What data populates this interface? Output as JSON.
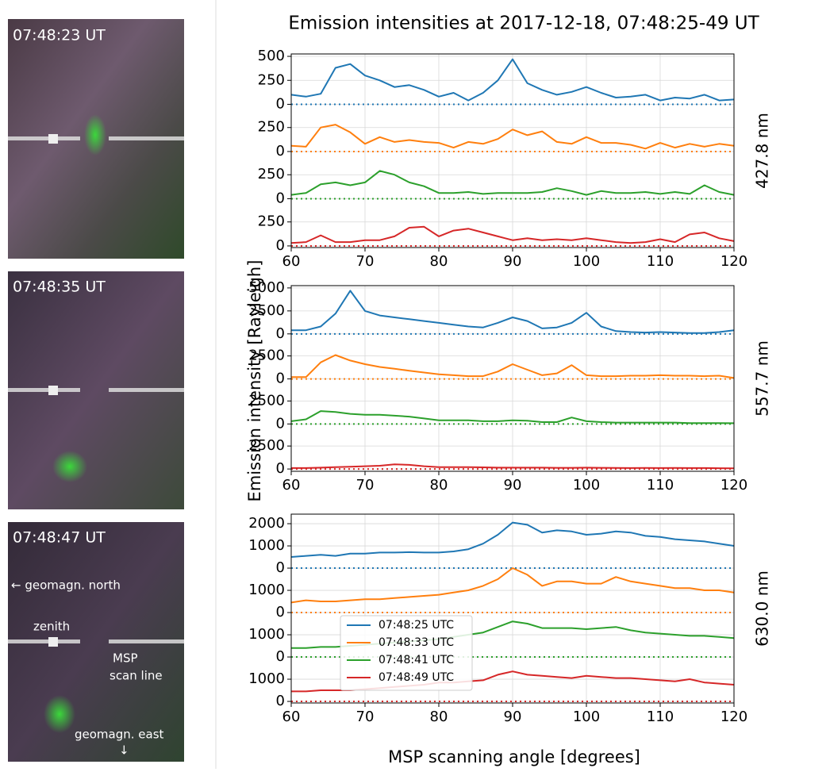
{
  "figure": {
    "title": "Emission intensities at 2017-12-18, 07:48:25-49 UT",
    "ylabel": "Emission intensity [Rayleigh]",
    "xlabel": "MSP scanning angle [degrees]"
  },
  "images": [
    {
      "label": "07:48:23 UT"
    },
    {
      "label": "07:48:35 UT"
    },
    {
      "label": "07:48:47 UT"
    }
  ],
  "annotations": {
    "north": "← geomagn. north",
    "zenith": "zenith",
    "scan_line": [
      "MSP",
      "scan line"
    ],
    "east": "geomagn. east",
    "east_arrow": "↓"
  },
  "chart_data": [
    {
      "type": "line",
      "label": "427.8 nm",
      "xlim": [
        60,
        120
      ],
      "xticks": [
        60,
        70,
        80,
        90,
        100,
        110,
        120
      ],
      "grid": true,
      "x": [
        60,
        62,
        64,
        66,
        68,
        70,
        72,
        74,
        76,
        78,
        80,
        82,
        84,
        86,
        88,
        90,
        92,
        94,
        96,
        98,
        100,
        102,
        104,
        106,
        108,
        110,
        112,
        114,
        116,
        118,
        120
      ],
      "series": [
        {
          "color": "#1f77b4",
          "ylim": [
            -17,
            525
          ],
          "yticks": [
            0,
            250,
            500
          ],
          "values": [
            100,
            80,
            110,
            380,
            420,
            300,
            250,
            180,
            200,
            150,
            80,
            120,
            40,
            120,
            250,
            470,
            220,
            150,
            100,
            130,
            180,
            120,
            70,
            80,
            100,
            40,
            70,
            60,
            100,
            40,
            50
          ]
        },
        {
          "color": "#ff7f0e",
          "ylim": [
            -17,
            475
          ],
          "yticks": [
            0,
            250
          ],
          "values": [
            60,
            50,
            250,
            280,
            200,
            80,
            150,
            100,
            120,
            100,
            90,
            40,
            100,
            80,
            130,
            230,
            170,
            210,
            100,
            80,
            150,
            90,
            90,
            70,
            30,
            90,
            40,
            80,
            50,
            80,
            60
          ]
        },
        {
          "color": "#2ca02c",
          "ylim": [
            -17,
            475
          ],
          "yticks": [
            0,
            250
          ],
          "values": [
            40,
            60,
            150,
            170,
            140,
            170,
            290,
            250,
            170,
            130,
            60,
            60,
            70,
            50,
            60,
            60,
            60,
            70,
            110,
            80,
            40,
            80,
            60,
            60,
            70,
            50,
            70,
            50,
            140,
            70,
            40
          ]
        },
        {
          "color": "#d62728",
          "ylim": [
            -17,
            475
          ],
          "yticks": [
            0,
            250
          ],
          "values": [
            30,
            40,
            110,
            40,
            40,
            60,
            60,
            100,
            190,
            200,
            100,
            160,
            180,
            140,
            100,
            60,
            80,
            60,
            70,
            60,
            80,
            60,
            40,
            30,
            40,
            70,
            40,
            120,
            140,
            80,
            50
          ]
        }
      ]
    },
    {
      "type": "line",
      "label": "557.7 nm",
      "xlim": [
        60,
        120
      ],
      "xticks": [
        60,
        70,
        80,
        90,
        100,
        110,
        120
      ],
      "grid": true,
      "x": [
        60,
        62,
        64,
        66,
        68,
        70,
        72,
        74,
        76,
        78,
        80,
        82,
        84,
        86,
        88,
        90,
        92,
        94,
        96,
        98,
        100,
        102,
        104,
        106,
        108,
        110,
        112,
        114,
        116,
        118,
        120
      ],
      "series": [
        {
          "color": "#1f77b4",
          "ylim": [
            -250,
            5250
          ],
          "yticks": [
            0,
            2500,
            5000
          ],
          "values": [
            400,
            400,
            800,
            2200,
            4700,
            2500,
            2000,
            1800,
            1600,
            1400,
            1200,
            1000,
            800,
            700,
            1200,
            1800,
            1400,
            600,
            700,
            1200,
            2300,
            800,
            300,
            200,
            150,
            200,
            150,
            100,
            100,
            200,
            400
          ]
        },
        {
          "color": "#ff7f0e",
          "ylim": [
            -250,
            4650
          ],
          "yticks": [
            0,
            2500
          ],
          "values": [
            200,
            200,
            1800,
            2600,
            2000,
            1600,
            1300,
            1100,
            900,
            700,
            500,
            400,
            300,
            300,
            800,
            1600,
            1000,
            400,
            600,
            1500,
            400,
            300,
            300,
            350,
            350,
            400,
            350,
            350,
            300,
            350,
            100
          ]
        },
        {
          "color": "#2ca02c",
          "ylim": [
            -250,
            4650
          ],
          "yticks": [
            0,
            2500
          ],
          "values": [
            300,
            500,
            1400,
            1300,
            1100,
            1000,
            1000,
            900,
            800,
            600,
            400,
            400,
            400,
            300,
            300,
            400,
            350,
            200,
            200,
            700,
            300,
            200,
            150,
            150,
            150,
            150,
            150,
            100,
            100,
            100,
            80
          ]
        },
        {
          "color": "#d62728",
          "ylim": [
            -250,
            4650
          ],
          "yticks": [
            0,
            2500
          ],
          "values": [
            100,
            100,
            150,
            200,
            250,
            300,
            350,
            500,
            450,
            300,
            200,
            200,
            200,
            180,
            150,
            150,
            150,
            150,
            130,
            130,
            150,
            130,
            120,
            100,
            120,
            100,
            110,
            100,
            100,
            90,
            80
          ]
        }
      ]
    },
    {
      "type": "line",
      "label": "630.0 nm",
      "xlim": [
        60,
        120
      ],
      "xticks": [
        60,
        70,
        80,
        90,
        100,
        110,
        120
      ],
      "grid": true,
      "legend": "lower left",
      "x": [
        60,
        62,
        64,
        66,
        68,
        70,
        72,
        74,
        76,
        78,
        80,
        82,
        84,
        86,
        88,
        90,
        92,
        94,
        96,
        98,
        100,
        102,
        104,
        106,
        108,
        110,
        112,
        114,
        116,
        118,
        120
      ],
      "series": [
        {
          "name": "07:48:25 UTC",
          "color": "#1f77b4",
          "ylim": [
            -70,
            2430
          ],
          "yticks": [
            0,
            1000,
            2000
          ],
          "values": [
            500,
            550,
            600,
            550,
            650,
            650,
            700,
            700,
            720,
            700,
            700,
            750,
            850,
            1100,
            1500,
            2050,
            1950,
            1600,
            1700,
            1650,
            1500,
            1550,
            1650,
            1600,
            1450,
            1400,
            1300,
            1250,
            1200,
            1100,
            1000
          ]
        },
        {
          "name": "07:48:33 UTC",
          "color": "#ff7f0e",
          "ylim": [
            -70,
            1930
          ],
          "yticks": [
            0,
            1000
          ],
          "values": [
            450,
            550,
            500,
            500,
            550,
            600,
            600,
            650,
            700,
            750,
            800,
            900,
            1000,
            1200,
            1500,
            2000,
            1700,
            1200,
            1400,
            1400,
            1300,
            1300,
            1600,
            1400,
            1300,
            1200,
            1100,
            1100,
            1000,
            1000,
            900
          ]
        },
        {
          "name": "07:48:41 UTC",
          "color": "#2ca02c",
          "ylim": [
            -70,
            1930
          ],
          "yticks": [
            0,
            1000
          ],
          "values": [
            400,
            400,
            450,
            450,
            500,
            550,
            600,
            650,
            700,
            750,
            800,
            900,
            1000,
            1100,
            1350,
            1600,
            1500,
            1300,
            1300,
            1300,
            1250,
            1300,
            1350,
            1200,
            1100,
            1050,
            1000,
            950,
            950,
            900,
            850
          ]
        },
        {
          "name": "07:48:49 UTC",
          "color": "#d62728",
          "ylim": [
            -70,
            1930
          ],
          "yticks": [
            0,
            1000
          ],
          "values": [
            450,
            450,
            500,
            500,
            500,
            550,
            600,
            650,
            700,
            750,
            850,
            850,
            900,
            950,
            1200,
            1350,
            1200,
            1150,
            1100,
            1050,
            1150,
            1100,
            1050,
            1050,
            1000,
            950,
            900,
            1000,
            850,
            800,
            750
          ]
        }
      ]
    }
  ]
}
